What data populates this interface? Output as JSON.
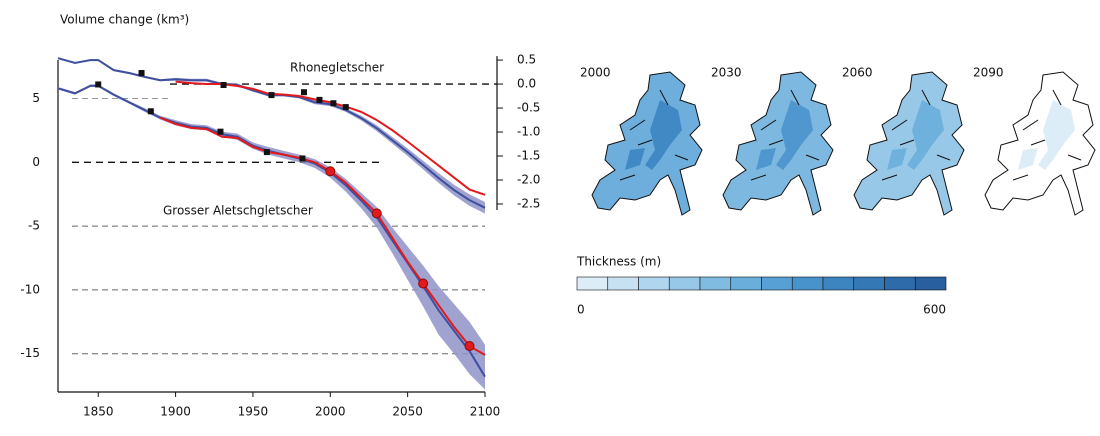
{
  "chart_data": {
    "type": "line",
    "y_label": "Volume change (km³)",
    "annotations": [
      "Rhonegletscher",
      "Grosser Aletschgletscher"
    ],
    "x": [
      1824,
      1835,
      1845,
      1850,
      1860,
      1870,
      1880,
      1890,
      1900,
      1910,
      1920,
      1930,
      1940,
      1950,
      1960,
      1970,
      1980,
      1990,
      2000,
      2010,
      2020,
      2030,
      2040,
      2050,
      2060,
      2070,
      2080,
      2090,
      2100
    ],
    "xlim": [
      1824,
      2100
    ],
    "xticks": [
      1850,
      1900,
      1950,
      2000,
      2050,
      2100
    ],
    "ylim": [
      -18,
      8.8
    ],
    "yticks": [
      -15,
      -10,
      -5,
      0,
      5
    ],
    "y2lim": [
      -6.42,
      0.71
    ],
    "y2ticks": [
      0.5,
      {
        "value": 0,
        "label": "0.0"
      },
      -0.5,
      {
        "value": -1,
        "label": "-1.0"
      },
      -1.5,
      {
        "value": -2,
        "label": "-2.0"
      },
      -2.5
    ],
    "series": [
      {
        "style": "band",
        "color": "#8f93c8",
        "upper": [
          5.9,
          5.5,
          6.1,
          6.1,
          5.4,
          4.8,
          4.25,
          3.65,
          3.3,
          3.0,
          2.9,
          2.4,
          2.25,
          1.55,
          1.2,
          0.9,
          0.6,
          0.25,
          -0.4,
          -1.3,
          -2.4,
          -3.5,
          -5.1,
          -6.6,
          -8.1,
          -9.7,
          -11.1,
          -12.5,
          -14.3
        ],
        "lower": [
          5.7,
          5.3,
          5.9,
          5.9,
          5.2,
          4.6,
          3.95,
          3.35,
          2.9,
          2.6,
          2.5,
          2.0,
          1.75,
          1.05,
          0.6,
          0.3,
          0.0,
          -0.45,
          -1.2,
          -2.3,
          -3.6,
          -5.1,
          -7.1,
          -9.2,
          -11.3,
          -13.5,
          -15.0,
          -16.6,
          -17.8
        ]
      },
      {
        "style": "band",
        "axis": "y2",
        "color": "#8f93c8",
        "upper": [
          0.56,
          0.46,
          0.52,
          0.52,
          0.31,
          0.25,
          0.17,
          0.1,
          0.13,
          0.11,
          0.11,
          0.03,
          0.01,
          -0.1,
          -0.2,
          -0.2,
          -0.24,
          -0.34,
          -0.38,
          -0.5,
          -0.66,
          -0.86,
          -1.1,
          -1.34,
          -1.6,
          -1.86,
          -2.1,
          -2.3,
          -2.46
        ],
        "lower": [
          0.52,
          0.42,
          0.48,
          0.48,
          0.27,
          0.21,
          0.13,
          0.06,
          0.07,
          0.05,
          0.05,
          -0.03,
          -0.05,
          -0.16,
          -0.26,
          -0.26,
          -0.3,
          -0.42,
          -0.46,
          -0.58,
          -0.76,
          -0.98,
          -1.24,
          -1.5,
          -1.78,
          -2.06,
          -2.32,
          -2.54,
          -2.7
        ]
      },
      {
        "style": "line",
        "color": "#3f4f9f",
        "values": [
          5.8,
          5.4,
          6.0,
          6.0,
          5.3,
          4.7,
          4.1,
          3.5,
          3.1,
          2.8,
          2.7,
          2.2,
          2.0,
          1.3,
          0.9,
          0.6,
          0.3,
          -0.1,
          -0.8,
          -1.8,
          -3.0,
          -4.3,
          -6.1,
          -7.9,
          -9.7,
          -11.6,
          -13.2,
          -14.8,
          -16.8
        ]
      },
      {
        "style": "line",
        "axis": "y2",
        "color": "#3f4f9f",
        "values": [
          0.54,
          0.44,
          0.5,
          0.5,
          0.29,
          0.23,
          0.15,
          0.08,
          0.1,
          0.08,
          0.08,
          0.0,
          -0.02,
          -0.13,
          -0.23,
          -0.23,
          -0.27,
          -0.38,
          -0.42,
          -0.54,
          -0.71,
          -0.92,
          -1.17,
          -1.42,
          -1.69,
          -1.96,
          -2.21,
          -2.42,
          -2.58
        ]
      },
      {
        "style": "line",
        "color": "#e3191c",
        "values": [
          null,
          null,
          null,
          null,
          null,
          null,
          null,
          3.5,
          3.0,
          2.7,
          2.6,
          2.0,
          1.9,
          1.2,
          0.8,
          0.6,
          0.35,
          0.0,
          -0.7,
          -1.6,
          -2.8,
          -4.0,
          -5.9,
          -7.8,
          -9.5,
          -11.2,
          -12.9,
          -14.4,
          -15.1
        ]
      },
      {
        "style": "line",
        "axis": "y2",
        "color": "#e3191c",
        "values": [
          null,
          null,
          null,
          null,
          null,
          null,
          null,
          null,
          0.05,
          0.02,
          0.0,
          0.0,
          -0.04,
          -0.1,
          -0.2,
          -0.22,
          -0.25,
          -0.32,
          -0.38,
          -0.47,
          -0.58,
          -0.75,
          -0.96,
          -1.2,
          -1.45,
          -1.7,
          -1.95,
          -2.2,
          -2.31
        ]
      },
      {
        "style": "scatter",
        "marker": "square",
        "color": "#111111",
        "x": [
          1850,
          1884,
          1929,
          1959,
          1982
        ],
        "values": [
          6.1,
          4.0,
          2.4,
          0.8,
          0.3
        ]
      },
      {
        "style": "scatter",
        "axis": "y2",
        "marker": "square",
        "color": "#111111",
        "x": [
          1878,
          1931,
          1962,
          1983,
          1993,
          2002,
          2010
        ],
        "values": [
          0.23,
          -0.02,
          -0.23,
          -0.17,
          -0.33,
          -0.4,
          -0.48
        ]
      },
      {
        "style": "scatter",
        "marker": "circle",
        "color": "#e3191c",
        "x": [
          2000,
          2030,
          2060,
          2090
        ],
        "values": [
          -0.7,
          -4.0,
          -9.5,
          -14.4
        ]
      }
    ]
  },
  "maps": {
    "years": [
      "2000",
      "2030",
      "2060",
      "2090"
    ]
  },
  "colorbar": {
    "title": "Thickness (m)",
    "range": [
      0,
      600
    ],
    "colors": [
      "#dcedf8",
      "#c7e1f3",
      "#b0d5ee",
      "#98c8e8",
      "#80bbe2",
      "#6aaedc",
      "#57a0d5",
      "#4893cc",
      "#3c85c1",
      "#3478b6",
      "#2d6bab",
      "#275f9f"
    ]
  }
}
